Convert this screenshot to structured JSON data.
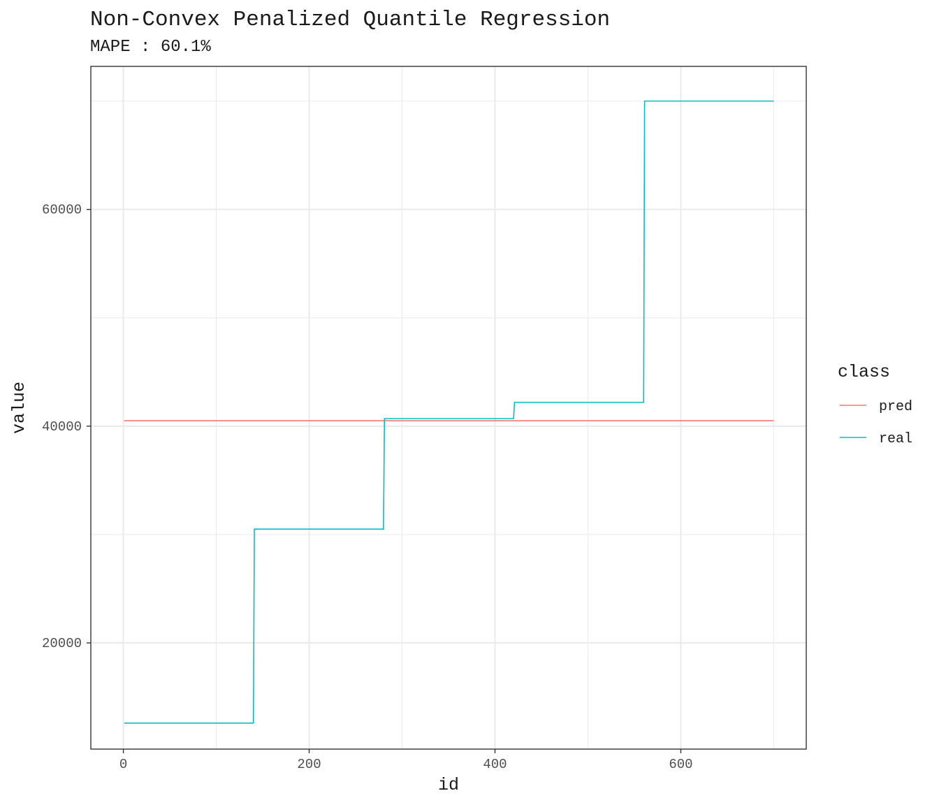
{
  "chart_data": {
    "type": "line",
    "title": "Non-Convex Penalized Quantile Regression",
    "subtitle": "MAPE : 60.1%",
    "xlabel": "id",
    "ylabel": "value",
    "xlim": [
      -35,
      735
    ],
    "ylim": [
      10200,
      73200
    ],
    "x_ticks": [
      0,
      200,
      400,
      600
    ],
    "x_tick_labels": [
      "0",
      "200",
      "400",
      "600"
    ],
    "x_minor_ticks": [
      100,
      300,
      500,
      700
    ],
    "y_ticks": [
      20000,
      40000,
      60000
    ],
    "y_tick_labels": [
      "20000",
      "40000",
      "60000"
    ],
    "y_minor_ticks": [
      30000,
      50000,
      70000
    ],
    "grid": true,
    "legend": {
      "title": "class",
      "position": "right",
      "entries": [
        "pred",
        "real"
      ]
    },
    "series": [
      {
        "name": "pred",
        "color": "#F8766D",
        "points": [
          [
            1,
            40500
          ],
          [
            700,
            40500
          ]
        ]
      },
      {
        "name": "real",
        "color": "#00BFC4",
        "points": [
          [
            1,
            12600
          ],
          [
            140,
            12600
          ],
          [
            141,
            30500
          ],
          [
            280,
            30500
          ],
          [
            281,
            40700
          ],
          [
            420,
            40700
          ],
          [
            421,
            42200
          ],
          [
            560,
            42200
          ],
          [
            561,
            70000
          ],
          [
            700,
            70000
          ]
        ]
      }
    ]
  }
}
